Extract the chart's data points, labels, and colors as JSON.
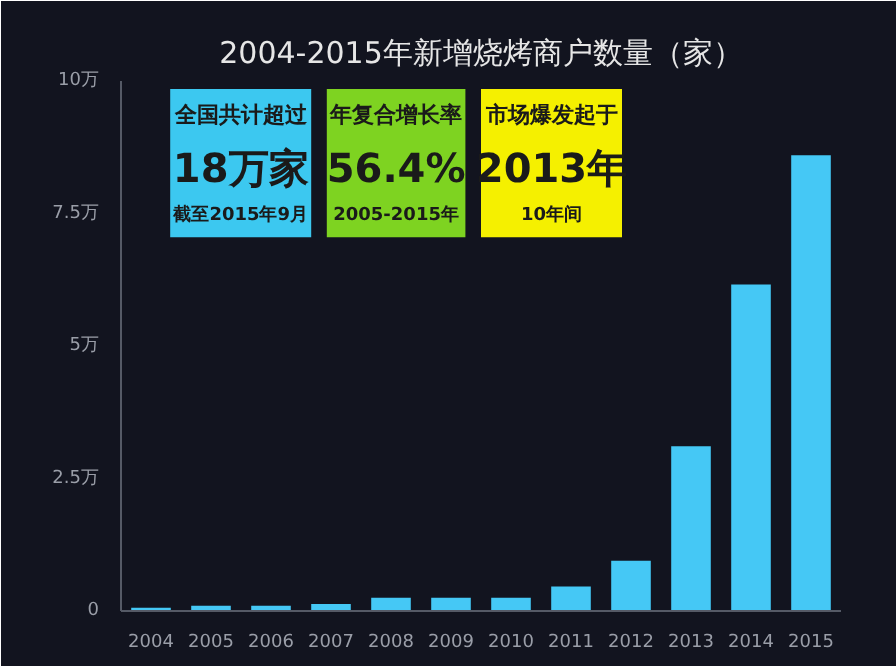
{
  "chart_data": {
    "type": "bar",
    "title": "2004-2015年新增烧烤商户数量（家）",
    "categories": [
      "2004",
      "2005",
      "2006",
      "2007",
      "2008",
      "2009",
      "2010",
      "2011",
      "2012",
      "2013",
      "2014",
      "2015"
    ],
    "values": [
      0.06,
      0.1,
      0.1,
      0.13,
      0.25,
      0.25,
      0.25,
      0.46,
      0.95,
      3.11,
      6.16,
      8.6
    ],
    "color": "#45c8f5",
    "ylim": [
      0,
      10
    ],
    "yticks": [
      0,
      {
        "value": 2.5,
        "label": "2.5万"
      },
      {
        "value": 5,
        "label": "5万"
      },
      {
        "value": 7.5,
        "label": "7.5万"
      },
      {
        "value": 10,
        "label": "10万"
      }
    ],
    "grid": false,
    "annotations": [
      "全国共计超过",
      "18万家",
      "截至2015年9月",
      "年复合增长率",
      "56.4%",
      "2005-2015年",
      "市场爆发起于",
      "2013年",
      "10年间"
    ]
  }
}
